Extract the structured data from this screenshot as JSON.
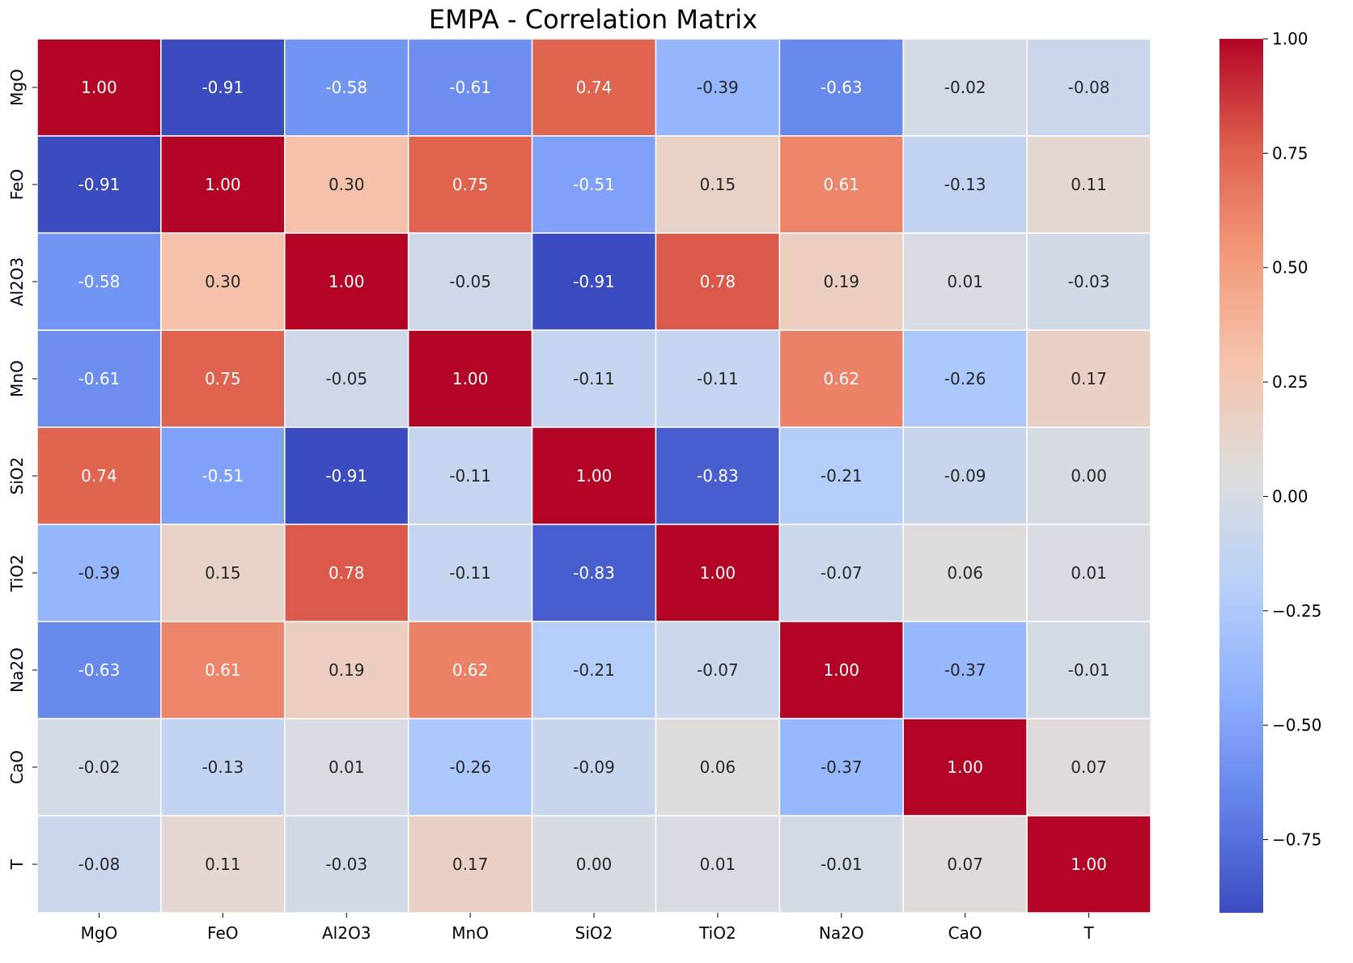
{
  "chart_data": {
    "type": "heatmap",
    "title": "EMPA - Correlation Matrix",
    "xlabel": "",
    "ylabel": "",
    "x_categories": [
      "MgO",
      "FeO",
      "Al2O3",
      "MnO",
      "SiO2",
      "TiO2",
      "Na2O",
      "CaO",
      "T"
    ],
    "y_categories": [
      "MgO",
      "FeO",
      "Al2O3",
      "MnO",
      "SiO2",
      "TiO2",
      "Na2O",
      "CaO",
      "T"
    ],
    "values": [
      [
        1.0,
        -0.91,
        -0.58,
        -0.61,
        0.74,
        -0.39,
        -0.63,
        -0.02,
        -0.08
      ],
      [
        -0.91,
        1.0,
        0.3,
        0.75,
        -0.51,
        0.15,
        0.61,
        -0.13,
        0.11
      ],
      [
        -0.58,
        0.3,
        1.0,
        -0.05,
        -0.91,
        0.78,
        0.19,
        0.01,
        -0.03
      ],
      [
        -0.61,
        0.75,
        -0.05,
        1.0,
        -0.11,
        -0.11,
        0.62,
        -0.26,
        0.17
      ],
      [
        0.74,
        -0.51,
        -0.91,
        -0.11,
        1.0,
        -0.83,
        -0.21,
        -0.09,
        0.0
      ],
      [
        -0.39,
        0.15,
        0.78,
        -0.11,
        -0.83,
        1.0,
        -0.07,
        0.06,
        0.01
      ],
      [
        -0.63,
        0.61,
        0.19,
        0.62,
        -0.21,
        -0.07,
        1.0,
        -0.37,
        -0.01
      ],
      [
        -0.02,
        -0.13,
        0.01,
        -0.26,
        -0.09,
        0.06,
        -0.37,
        1.0,
        0.07
      ],
      [
        -0.08,
        0.11,
        -0.03,
        0.17,
        0.0,
        0.01,
        -0.01,
        0.07,
        1.0
      ]
    ],
    "value_format": "0.00",
    "colormap": "coolwarm",
    "color_range": [
      -0.91,
      1.0
    ],
    "colorbar": {
      "ticks": [
        1.0,
        0.75,
        0.5,
        0.25,
        0.0,
        -0.25,
        -0.5,
        -0.75
      ],
      "tick_labels": [
        "1.00",
        "0.75",
        "0.50",
        "0.25",
        "0.00",
        "−0.25",
        "−0.50",
        "−0.75"
      ],
      "placement": "right"
    },
    "grid": false,
    "cell_border_color": "#ffffff"
  }
}
